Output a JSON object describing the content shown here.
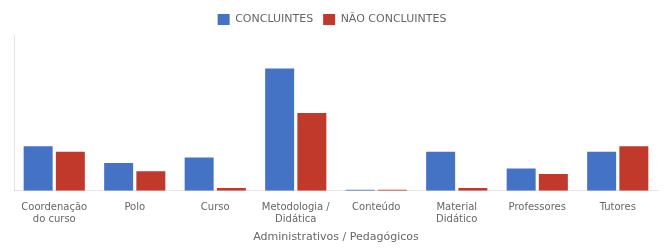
{
  "chart_data": {
    "type": "bar",
    "categories": [
      "Coordenação\ndo curso",
      "Polo",
      "Curso",
      "Metodologia /\nDidática",
      "Conteúdo",
      "Material\nDidático",
      "Professores",
      "Tutores"
    ],
    "series": [
      {
        "name": "CONCLUINTES",
        "color": "#4472c4",
        "values": [
          8,
          5,
          6,
          22,
          0.2,
          7,
          4,
          7
        ]
      },
      {
        "name": "NÃO CONCLUINTES",
        "color": "#c0392b",
        "values": [
          7,
          3.5,
          0.5,
          14,
          0.2,
          0.5,
          3,
          8
        ]
      }
    ],
    "xlabel": "Administrativos / Pedagógicos",
    "ylim": [
      0,
      28
    ],
    "grid": false,
    "legend": "top",
    "tick_labels": "x"
  }
}
